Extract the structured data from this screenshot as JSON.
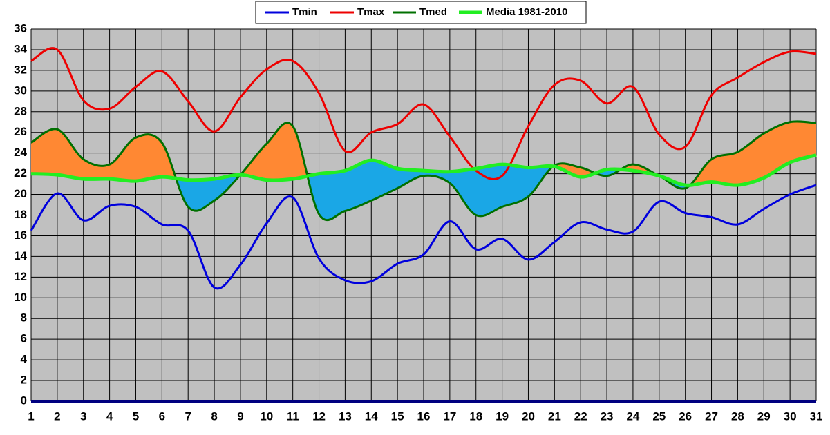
{
  "chart_data": {
    "type": "line",
    "categories": [
      "1",
      "2",
      "3",
      "4",
      "5",
      "6",
      "7",
      "8",
      "9",
      "10",
      "11",
      "12",
      "13",
      "14",
      "15",
      "16",
      "17",
      "18",
      "19",
      "20",
      "21",
      "22",
      "23",
      "24",
      "25",
      "26",
      "27",
      "28",
      "29",
      "30",
      "31"
    ],
    "series": [
      {
        "name": "Tmin",
        "color": "#0000dd",
        "values": [
          16.5,
          20.1,
          17.5,
          18.9,
          18.8,
          17.1,
          16.5,
          11.0,
          13.2,
          17.2,
          19.7,
          13.8,
          11.7,
          11.6,
          13.3,
          14.2,
          17.4,
          14.7,
          15.7,
          13.7,
          15.4,
          17.3,
          16.6,
          16.4,
          19.3,
          18.2,
          17.8,
          17.1,
          18.6,
          20.0,
          20.9
        ]
      },
      {
        "name": "Tmax",
        "color": "#ee0000",
        "values": [
          32.9,
          34.0,
          29.1,
          28.3,
          30.4,
          31.9,
          29.0,
          26.1,
          29.4,
          32.1,
          32.9,
          29.8,
          24.2,
          26.0,
          26.8,
          28.7,
          25.6,
          22.3,
          21.8,
          26.6,
          30.6,
          31.0,
          28.8,
          30.4,
          25.8,
          24.6,
          29.6,
          31.3,
          32.8,
          33.8,
          33.6
        ]
      },
      {
        "name": "Tmed",
        "color": "#007000",
        "values": [
          25.0,
          26.3,
          23.4,
          22.9,
          25.5,
          25.0,
          18.8,
          19.4,
          21.9,
          24.9,
          26.6,
          18.1,
          18.4,
          19.4,
          20.6,
          21.8,
          21.1,
          18.0,
          18.8,
          19.8,
          22.8,
          22.6,
          21.8,
          22.9,
          21.8,
          20.6,
          23.4,
          24.1,
          25.9,
          27.0,
          26.9
        ]
      },
      {
        "name": "Media 1981-2010",
        "color": "#22ee22",
        "values": [
          22.0,
          21.9,
          21.5,
          21.5,
          21.3,
          21.7,
          21.4,
          21.5,
          21.9,
          21.4,
          21.5,
          22.0,
          22.3,
          23.3,
          22.5,
          22.3,
          22.2,
          22.5,
          22.9,
          22.6,
          22.7,
          21.7,
          22.4,
          22.3,
          21.8,
          20.9,
          21.2,
          20.9,
          21.6,
          23.1,
          23.8
        ]
      }
    ],
    "ylim": [
      0,
      36
    ],
    "yticks": [
      0,
      2,
      4,
      6,
      8,
      10,
      12,
      14,
      16,
      18,
      20,
      22,
      24,
      26,
      28,
      30,
      32,
      34,
      36
    ],
    "grid": true,
    "legend": "top",
    "above_color": "#ff8833",
    "below_color": "#1aa7e6"
  }
}
